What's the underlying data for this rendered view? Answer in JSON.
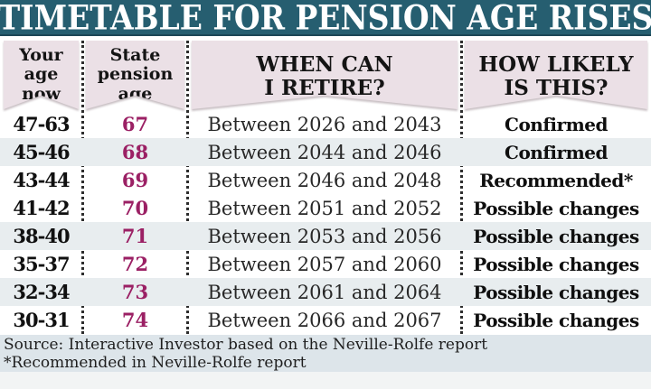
{
  "title": "TIMETABLE FOR PENSION AGE RISES",
  "colors": {
    "title_bg": "#265e70",
    "header_bg": "#ebe0e6",
    "accent_magenta": "#9b2064",
    "row_shaded": "#e8edef",
    "footer_bg": "#dde5ea"
  },
  "header": {
    "columns": [
      {
        "label": "Your\nage\nnow"
      },
      {
        "label": "State\npension\nage"
      },
      {
        "label": "WHEN CAN\nI RETIRE?"
      },
      {
        "label": "HOW LIKELY\nIS THIS?"
      }
    ]
  },
  "rows": [
    {
      "age_now": "47-63",
      "pension_age": "67",
      "retire_window": "Between 2026 and 2043",
      "likelihood": "Confirmed",
      "shaded": false
    },
    {
      "age_now": "45-46",
      "pension_age": "68",
      "retire_window": "Between 2044 and 2046",
      "likelihood": "Confirmed",
      "shaded": true
    },
    {
      "age_now": "43-44",
      "pension_age": "69",
      "retire_window": "Between 2046 and 2048",
      "likelihood": "Recommended*",
      "shaded": false
    },
    {
      "age_now": "41-42",
      "pension_age": "70",
      "retire_window": "Between 2051 and 2052",
      "likelihood": "Possible changes",
      "shaded": false
    },
    {
      "age_now": "38-40",
      "pension_age": "71",
      "retire_window": "Between 2053 and 2056",
      "likelihood": "Possible changes",
      "shaded": true
    },
    {
      "age_now": "35-37",
      "pension_age": "72",
      "retire_window": "Between 2057 and 2060",
      "likelihood": "Possible changes",
      "shaded": false
    },
    {
      "age_now": "32-34",
      "pension_age": "73",
      "retire_window": "Between 2061 and 2064",
      "likelihood": "Possible changes",
      "shaded": true
    },
    {
      "age_now": "30-31",
      "pension_age": "74",
      "retire_window": "Between 2066 and 2067",
      "likelihood": "Possible changes",
      "shaded": false
    }
  ],
  "footer": {
    "source_line": "Source: Interactive Investor based on the Neville-Rolfe report",
    "note_line": "*Recommended in Neville-Rolfe report"
  },
  "chart_data": {
    "type": "table",
    "title": "Timetable for pension age rises",
    "columns": [
      "Your age now",
      "State pension age",
      "When can I retire?",
      "How likely is this?"
    ],
    "rows": [
      [
        "47-63",
        "67",
        "Between 2026 and 2043",
        "Confirmed"
      ],
      [
        "45-46",
        "68",
        "Between 2044 and 2046",
        "Confirmed"
      ],
      [
        "43-44",
        "69",
        "Between 2046 and 2048",
        "Recommended*"
      ],
      [
        "41-42",
        "70",
        "Between 2051 and 2052",
        "Possible changes"
      ],
      [
        "38-40",
        "71",
        "Between 2053 and 2056",
        "Possible changes"
      ],
      [
        "35-37",
        "72",
        "Between 2057 and 2060",
        "Possible changes"
      ],
      [
        "32-34",
        "73",
        "Between 2061 and 2064",
        "Possible changes"
      ],
      [
        "30-31",
        "74",
        "Between 2066 and 2067",
        "Possible changes"
      ]
    ],
    "notes": [
      "Source: Interactive Investor based on the Neville-Rolfe report",
      "*Recommended in Neville-Rolfe report"
    ]
  }
}
